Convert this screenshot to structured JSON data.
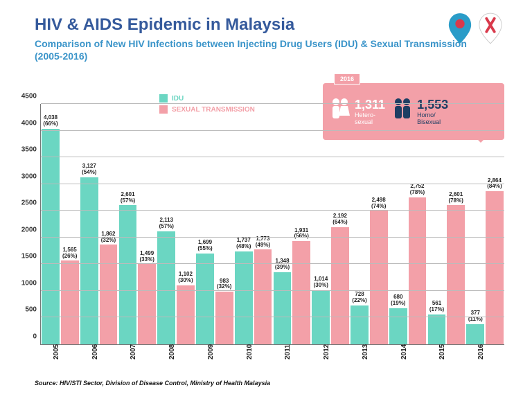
{
  "colors": {
    "title": "#355a9c",
    "subtitle": "#3a94c9",
    "idu": "#6bd6c2",
    "sexual": "#f3a0a8",
    "callout_bg": "#f3a0a8",
    "callout_text": "#ffffff",
    "callout_alt": "#1d3e63",
    "grid": "#bbbbbb",
    "axis": "#777777",
    "background": "#ffffff",
    "logo1": "#2a9cc8",
    "logo2": "#d9394b"
  },
  "title": "HIV & AIDS Epidemic in Malaysia",
  "subtitle": "Comparison of New HIV Infections between Injecting Drug Users (IDU) & Sexual Transmission (2005-2016)",
  "legend": {
    "idu": "IDU",
    "sexual": "SEXUAL TRANSMISSION"
  },
  "chart": {
    "type": "bar",
    "ylim": [
      0,
      4500
    ],
    "ytick_step": 500,
    "years": [
      "2005",
      "2006",
      "2007",
      "2008",
      "2009",
      "2010",
      "2011",
      "2012",
      "2013",
      "2014",
      "2015",
      "2016"
    ],
    "series": [
      {
        "key": "idu",
        "values": [
          4038,
          3127,
          2601,
          2113,
          1699,
          1737,
          1348,
          1014,
          728,
          680,
          561,
          377
        ],
        "pct": [
          "66%",
          "54%",
          "57%",
          "57%",
          "55%",
          "48%",
          "39%",
          "30%",
          "22%",
          "19%",
          "17%",
          "11%"
        ]
      },
      {
        "key": "sexual",
        "values": [
          1565,
          1862,
          1499,
          1102,
          983,
          1773,
          1931,
          2192,
          2498,
          2752,
          2601,
          2864
        ],
        "pct": [
          "26%",
          "32%",
          "33%",
          "30%",
          "32%",
          "49%",
          "56%",
          "64%",
          "74%",
          "78%",
          "78%",
          "84%"
        ]
      }
    ],
    "bar_label_fontsize": 8,
    "ytick_fontsize": 10,
    "xtick_fontsize": 10
  },
  "callout": {
    "year": "2016",
    "col1": {
      "value": "1,311",
      "label": "Hetero-\nsexual"
    },
    "col2": {
      "value": "1,553",
      "label": "Homo/\nBisexual"
    }
  },
  "source": "Source: HIV/STI Sector, Division of Disease Control, Ministry of Health Malaysia"
}
